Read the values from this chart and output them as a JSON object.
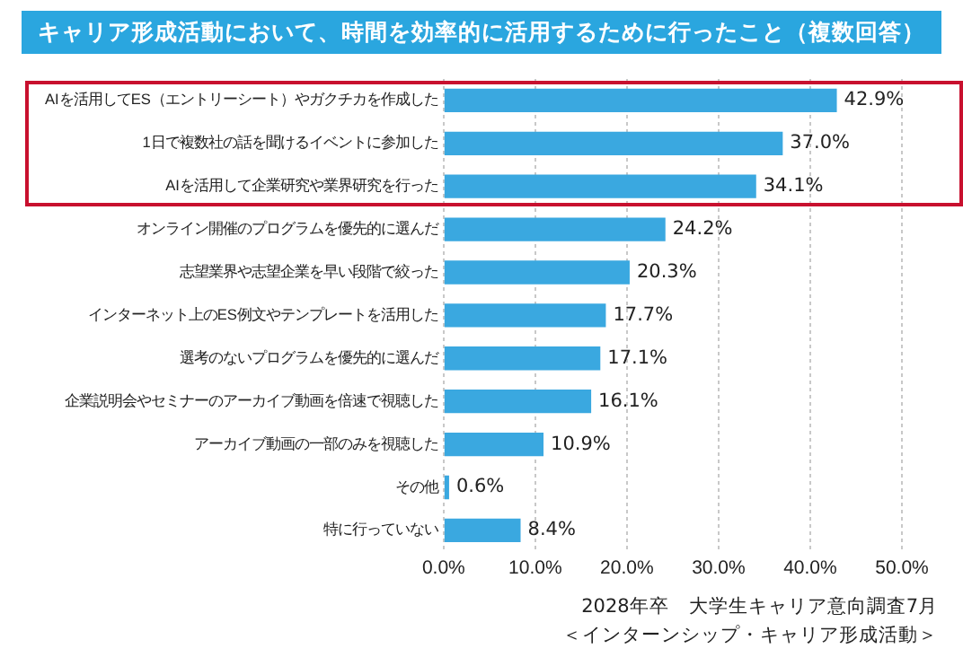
{
  "chart_data": {
    "type": "bar",
    "orientation": "horizontal",
    "title": "キャリア形成活動において、時間を効率的に活用するために行ったこと（複数回答）",
    "categories": [
      "AIを活用してES（エントリーシート）やガクチカを作成した",
      "1日で複数社の話を聞けるイベントに参加した",
      "AIを活用して企業研究や業界研究を行った",
      "オンライン開催のプログラムを優先的に選んだ",
      "志望業界や志望企業を早い段階で絞った",
      "インターネット上のES例文やテンプレートを活用した",
      "選考のないプログラムを優先的に選んだ",
      "企業説明会やセミナーのアーカイブ動画を倍速で視聴した",
      "アーカイブ動画の一部のみを視聴した",
      "その他",
      "特に行っていない"
    ],
    "values": [
      42.9,
      37.0,
      34.1,
      24.2,
      20.3,
      17.7,
      17.1,
      16.1,
      10.9,
      0.6,
      8.4
    ],
    "value_labels": [
      "42.9%",
      "37.0%",
      "34.1%",
      "24.2%",
      "20.3%",
      "17.7%",
      "17.1%",
      "16.1%",
      "10.9%",
      "0.6%",
      "8.4%"
    ],
    "color": "#3aa8e0",
    "xlim": [
      0,
      50
    ],
    "xticks": [
      {
        "value": 0,
        "label": "0.0%"
      },
      {
        "value": 10,
        "label": "10.0%"
      },
      {
        "value": 20,
        "label": "20.0%"
      },
      {
        "value": 30,
        "label": "30.0%"
      },
      {
        "value": 40,
        "label": "40.0%"
      },
      {
        "value": 50,
        "label": "50.0%"
      }
    ],
    "grid": "x",
    "legend": false,
    "annotations": [
      "2028年卒　大学生キャリア意向調査7月",
      "＜インターンシップ・キャリア形成活動＞"
    ]
  }
}
